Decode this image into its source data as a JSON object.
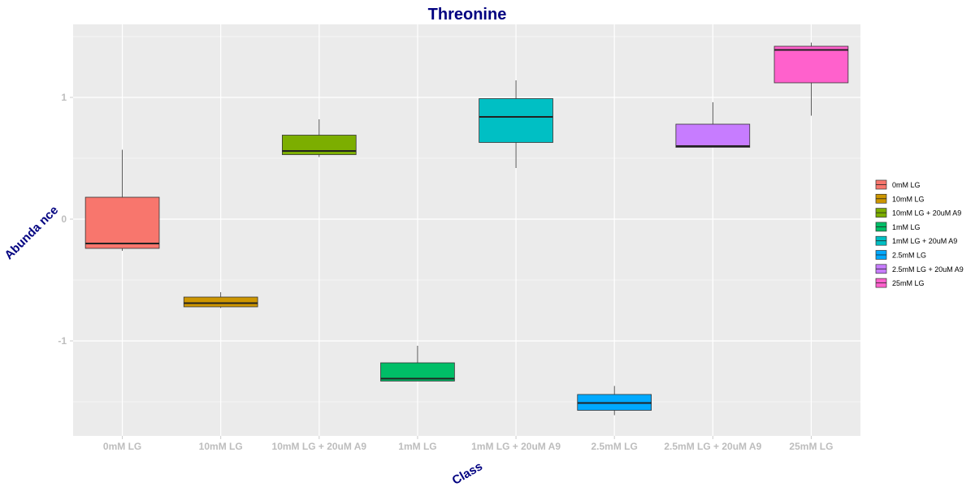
{
  "chart_data": {
    "type": "boxplot",
    "title": "Threonine",
    "xlabel": "Class",
    "ylabel": "Abunda nce",
    "ylim": [
      -1.78,
      1.6
    ],
    "yticks": [
      -1,
      0,
      1
    ],
    "ytick_labels": [
      "-1",
      "0",
      "1"
    ],
    "grid": true,
    "legend_position": "right",
    "colors": {
      "title": "#000080",
      "axis_title": "#000080",
      "tick_label": "#bdbdbd",
      "panel_bg": "#ebebeb",
      "grid": "#ffffff"
    },
    "categories": [
      "0mM LG",
      "10mM LG",
      "10mM LG + 20uM A9",
      "1mM LG",
      "1mM LG + 20uM A9",
      "2.5mM LG",
      "2.5mM LG + 20uM A9",
      "25mM LG"
    ],
    "series": [
      {
        "name": "0mM LG",
        "color": "#F8766D",
        "min": -0.26,
        "q1": -0.24,
        "median": -0.2,
        "q3": 0.18,
        "max": 0.57
      },
      {
        "name": "10mM LG",
        "color": "#CD9600",
        "min": -0.73,
        "q1": -0.72,
        "median": -0.69,
        "q3": -0.64,
        "max": -0.6
      },
      {
        "name": "10mM LG + 20uM A9",
        "color": "#7CAE00",
        "min": 0.51,
        "q1": 0.53,
        "median": 0.56,
        "q3": 0.69,
        "max": 0.82
      },
      {
        "name": "1mM LG",
        "color": "#00BE67",
        "min": -1.33,
        "q1": -1.33,
        "median": -1.31,
        "q3": -1.18,
        "max": -1.04
      },
      {
        "name": "1mM LG + 20uM A9",
        "color": "#00BFC4",
        "min": 0.42,
        "q1": 0.63,
        "median": 0.84,
        "q3": 0.99,
        "max": 1.14
      },
      {
        "name": "2.5mM LG",
        "color": "#00A9FF",
        "min": -1.61,
        "q1": -1.57,
        "median": -1.51,
        "q3": -1.44,
        "max": -1.37
      },
      {
        "name": "2.5mM LG + 20uM A9",
        "color": "#C77CFF",
        "min": 0.59,
        "q1": 0.59,
        "median": 0.6,
        "q3": 0.78,
        "max": 0.96
      },
      {
        "name": "25mM LG",
        "color": "#FF61CC",
        "min": 0.85,
        "q1": 1.12,
        "median": 1.39,
        "q3": 1.42,
        "max": 1.45
      }
    ]
  }
}
